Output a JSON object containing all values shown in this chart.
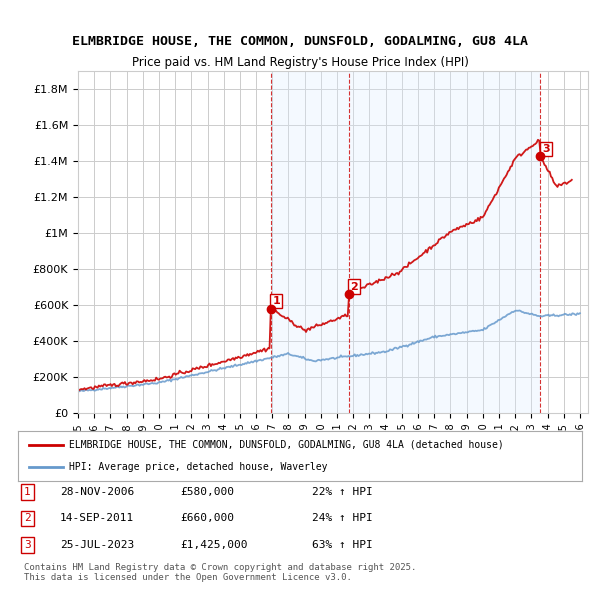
{
  "title": "ELMBRIDGE HOUSE, THE COMMON, DUNSFOLD, GODALMING, GU8 4LA",
  "subtitle": "Price paid vs. HM Land Registry's House Price Index (HPI)",
  "ylim": [
    0,
    1900000
  ],
  "yticks": [
    0,
    200000,
    400000,
    600000,
    800000,
    1000000,
    1200000,
    1400000,
    1600000,
    1800000
  ],
  "ytick_labels": [
    "£0",
    "£200K",
    "£400K",
    "£600K",
    "£800K",
    "£1M",
    "£1.2M",
    "£1.4M",
    "£1.6M",
    "£1.8M"
  ],
  "xlim_start": 1995.0,
  "xlim_end": 2026.5,
  "xtick_years": [
    1995,
    1996,
    1997,
    1998,
    1999,
    2000,
    2001,
    2002,
    2003,
    2004,
    2005,
    2006,
    2007,
    2008,
    2009,
    2010,
    2011,
    2012,
    2013,
    2014,
    2015,
    2016,
    2017,
    2018,
    2019,
    2020,
    2021,
    2022,
    2023,
    2024,
    2025,
    2026
  ],
  "legend_line1": "ELMBRIDGE HOUSE, THE COMMON, DUNSFOLD, GODALMING, GU8 4LA (detached house)",
  "legend_line2": "HPI: Average price, detached house, Waverley",
  "sale_color": "#cc0000",
  "hpi_color": "#6699cc",
  "transactions": [
    {
      "date_num": 2006.91,
      "price": 580000,
      "label": "1"
    },
    {
      "date_num": 2011.71,
      "price": 660000,
      "label": "2"
    },
    {
      "date_num": 2023.56,
      "price": 1425000,
      "label": "3"
    }
  ],
  "transaction_info": [
    {
      "label": "1",
      "date": "28-NOV-2006",
      "price": "£580,000",
      "hpi": "22% ↑ HPI"
    },
    {
      "label": "2",
      "date": "14-SEP-2011",
      "price": "£660,000",
      "hpi": "24% ↑ HPI"
    },
    {
      "label": "3",
      "date": "25-JUL-2023",
      "price": "£1,425,000",
      "hpi": "63% ↑ HPI"
    }
  ],
  "footer": "Contains HM Land Registry data © Crown copyright and database right 2025.\nThis data is licensed under the Open Government Licence v3.0.",
  "shaded_regions": [
    {
      "x_start": 2006.91,
      "x_end": 2011.71
    },
    {
      "x_start": 2011.71,
      "x_end": 2023.56
    }
  ],
  "vline_color": "#cc0000",
  "shade_color": "#ddeeff",
  "background_color": "#ffffff",
  "grid_color": "#cccccc"
}
